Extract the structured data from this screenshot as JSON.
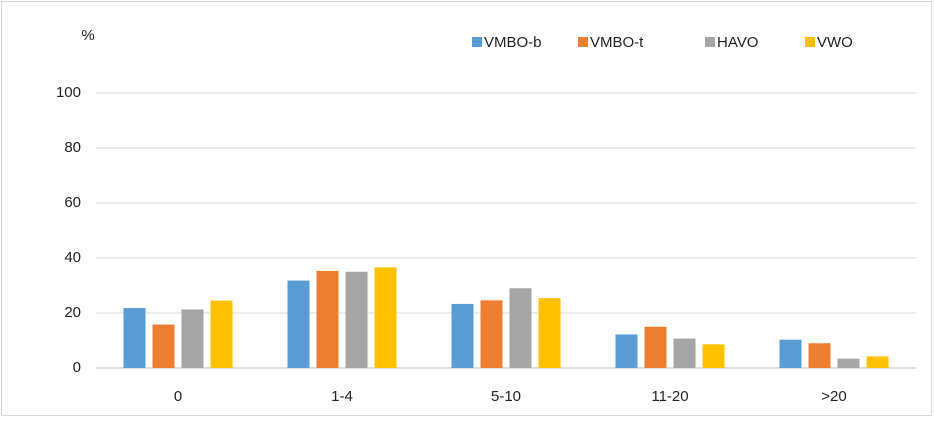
{
  "chart_data": {
    "type": "bar",
    "y_label": "%",
    "categories": [
      "0",
      "1-4",
      "5-10",
      "11-20",
      ">20"
    ],
    "series": [
      {
        "name": "VMBO-b",
        "color": "#5b9bd5",
        "values": [
          21.8,
          31.8,
          23.3,
          12.2,
          10.3
        ]
      },
      {
        "name": "VMBO-t",
        "color": "#ed7d31",
        "values": [
          15.8,
          35.3,
          24.6,
          15,
          9
        ]
      },
      {
        "name": "HAVO",
        "color": "#a5a5a5",
        "values": [
          21.3,
          35,
          29,
          10.7,
          3.4
        ]
      },
      {
        "name": "VWO",
        "color": "#ffc000",
        "values": [
          24.5,
          36.6,
          25.4,
          8.6,
          4.2
        ]
      }
    ],
    "ylim": [
      0,
      100
    ],
    "yticks": [
      0,
      20,
      40,
      60,
      80,
      100
    ],
    "grid": true,
    "legend": "top-right"
  }
}
